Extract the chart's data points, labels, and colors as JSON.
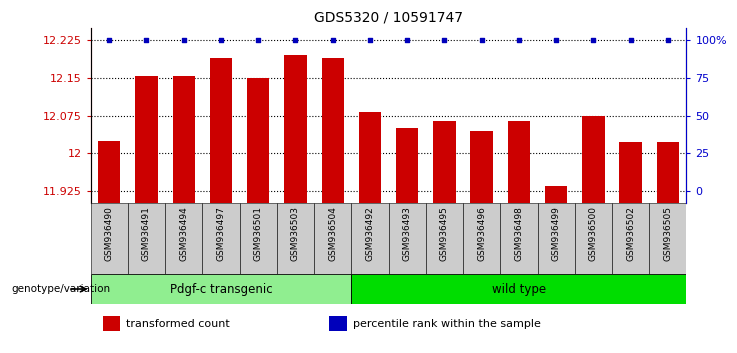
{
  "title": "GDS5320 / 10591747",
  "samples": [
    "GSM936490",
    "GSM936491",
    "GSM936494",
    "GSM936497",
    "GSM936501",
    "GSM936503",
    "GSM936504",
    "GSM936492",
    "GSM936493",
    "GSM936495",
    "GSM936496",
    "GSM936498",
    "GSM936499",
    "GSM936500",
    "GSM936502",
    "GSM936505"
  ],
  "red_values": [
    12.025,
    12.155,
    12.155,
    12.19,
    12.15,
    12.195,
    12.19,
    12.083,
    12.05,
    12.065,
    12.045,
    12.065,
    11.935,
    12.075,
    12.022,
    12.022
  ],
  "blue_values": [
    100,
    100,
    100,
    100,
    100,
    100,
    100,
    100,
    100,
    100,
    100,
    100,
    100,
    100,
    100,
    100
  ],
  "groups": [
    {
      "label": "Pdgf-c transgenic",
      "start": 0,
      "end": 7,
      "color": "#90EE90"
    },
    {
      "label": "wild type",
      "start": 7,
      "end": 16,
      "color": "#00DD00"
    }
  ],
  "ylim_left": [
    11.9,
    12.25
  ],
  "ylim_right": [
    -3.33,
    100
  ],
  "yticks_left": [
    11.925,
    12.0,
    12.075,
    12.15,
    12.225
  ],
  "yticks_right": [
    0,
    25,
    50,
    75,
    100
  ],
  "ytick_labels_left": [
    "11.925",
    "12",
    "12.075",
    "12.15",
    "12.225"
  ],
  "ytick_labels_right": [
    "0",
    "25",
    "50",
    "75",
    "100%"
  ],
  "left_axis_color": "#CC0000",
  "right_axis_color": "#0000CC",
  "bar_color": "#CC0000",
  "dot_color": "#0000BB",
  "background_color": "#ffffff",
  "legend_items": [
    {
      "color": "#CC0000",
      "label": "transformed count"
    },
    {
      "color": "#0000BB",
      "label": "percentile rank within the sample"
    }
  ],
  "bar_bottom": 11.9,
  "n_groups_transgenic": 7,
  "n_groups_wild": 9
}
